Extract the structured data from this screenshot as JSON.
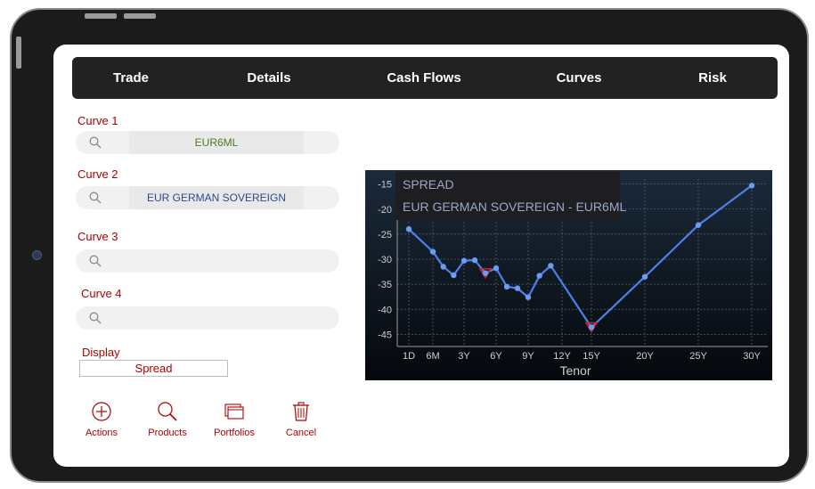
{
  "tabs": [
    {
      "label": "Trade"
    },
    {
      "label": "Details"
    },
    {
      "label": "Cash Flows"
    },
    {
      "label": "Curves"
    },
    {
      "label": "Risk"
    }
  ],
  "form": {
    "curve1": {
      "label": "Curve 1",
      "value": "EUR6ML",
      "color": "#4a7a2a"
    },
    "curve2": {
      "label": "Curve 2",
      "value": "EUR GERMAN SOVEREIGN",
      "color": "#2a4a8a"
    },
    "curve3": {
      "label": "Curve 3",
      "value": ""
    },
    "curve4": {
      "label": "Curve 4",
      "value": ""
    },
    "display": {
      "label": "Display",
      "value": "Spread"
    }
  },
  "actions": [
    {
      "label": "Actions",
      "icon": "plus-circle-icon"
    },
    {
      "label": "Products",
      "icon": "magnifier-icon"
    },
    {
      "label": "Portfolios",
      "icon": "folders-icon"
    },
    {
      "label": "Cancel",
      "icon": "trash-icon"
    }
  ],
  "colors": {
    "accent": "#b00000",
    "tabbar": "#222222",
    "series": "#4a82e8"
  },
  "chart_data": {
    "type": "line",
    "title": "SPREAD",
    "subtitle": "EUR GERMAN SOVEREIGN - EUR6ML",
    "xlabel": "Tenor",
    "ylabel": "",
    "x_ticks": [
      "1D",
      "6M",
      "3Y",
      "6Y",
      "9Y",
      "12Y",
      "15Y",
      "20Y",
      "25Y",
      "30Y"
    ],
    "y_ticks": [
      -15,
      -20,
      -25,
      -30,
      -35,
      -40,
      -45
    ],
    "ylim": [
      -46,
      -14
    ],
    "grid": true,
    "series": [
      {
        "points": [
          {
            "x": 1.0,
            "y": -24
          },
          {
            "x": 2.0,
            "y": -28.5
          },
          {
            "x": 3.0,
            "y": -31.5
          },
          {
            "x": 4.0,
            "y": -33.2
          },
          {
            "x": 5.0,
            "y": -30.3
          },
          {
            "x": 6.0,
            "y": -30.2
          },
          {
            "x": 7.0,
            "y": -32.8
          },
          {
            "x": 8.0,
            "y": -31.8
          },
          {
            "x": 9.0,
            "y": -35.5
          },
          {
            "x": 10.0,
            "y": -35.8
          },
          {
            "x": 11.0,
            "y": -37.6
          },
          {
            "x": 12.0,
            "y": -33.3
          },
          {
            "x": 13.0,
            "y": -31.3
          },
          {
            "x": 15.0,
            "y": -43.6
          },
          {
            "x": 20.0,
            "y": -33.5
          },
          {
            "x": 25.0,
            "y": -23.2
          },
          {
            "x": 30.0,
            "y": -15.3
          }
        ],
        "highlighted": [
          {
            "x": 7.0,
            "y": -32.8
          },
          {
            "x": 15.0,
            "y": -43.6
          }
        ]
      }
    ]
  }
}
